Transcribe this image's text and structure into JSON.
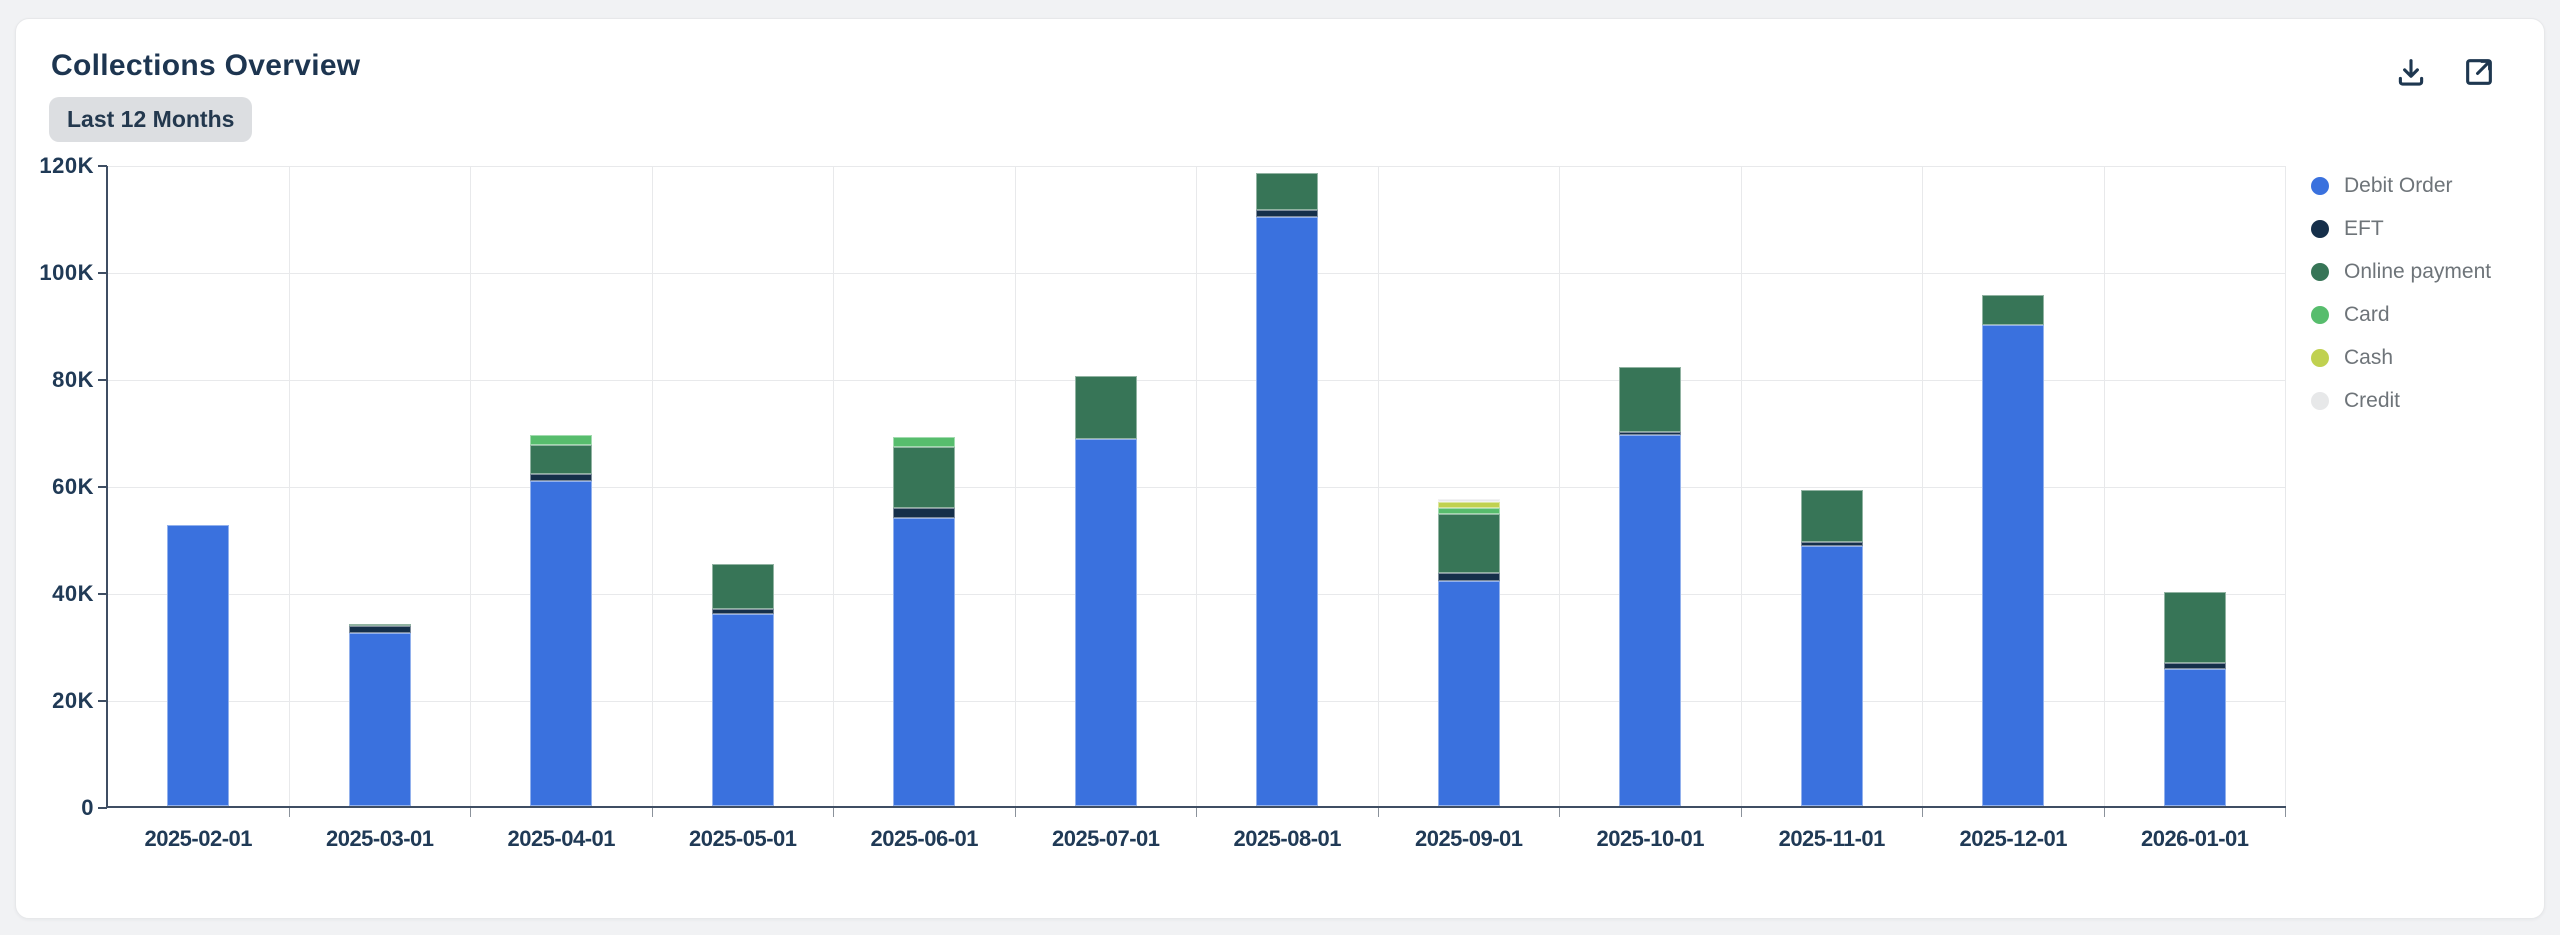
{
  "page": {
    "background": "#f1f2f4",
    "card_background": "#ffffff"
  },
  "header": {
    "title": "Collections Overview",
    "badge": "Last 12 Months",
    "icons": [
      {
        "name": "download-icon"
      },
      {
        "name": "open-external-icon"
      }
    ]
  },
  "colors": {
    "title_text": "#1d3550",
    "axis_label_text": "#203a56",
    "legend_text": "#6e7479",
    "axis_line": "#3f4e63",
    "gridline": "#e8e9eb",
    "badge_bg": "#dcdee1"
  },
  "chart_data": {
    "type": "bar",
    "stacked": true,
    "title": "Collections Overview",
    "xlabel": "",
    "ylabel": "",
    "unit": "thousands (K)",
    "grid": true,
    "legend_position": "right",
    "ylim_k": [
      0,
      120
    ],
    "yticks": [
      "0",
      "20K",
      "40K",
      "60K",
      "80K",
      "100K",
      "120K"
    ],
    "x": [
      "2025-02-01",
      "2025-03-01",
      "2025-04-01",
      "2025-05-01",
      "2025-06-01",
      "2025-07-01",
      "2025-08-01",
      "2025-09-01",
      "2025-10-01",
      "2025-11-01",
      "2025-12-01",
      "2026-01-01"
    ],
    "series": [
      {
        "name": "Debit Order",
        "color": "#3a71de",
        "values_k": [
          52.5,
          32.3,
          60.8,
          35.9,
          53.8,
          68.6,
          110.1,
          42.1,
          69.4,
          48.6,
          89.9,
          25.6
        ]
      },
      {
        "name": "EFT",
        "color": "#152f4a",
        "values_k": [
          0,
          1.4,
          1.3,
          0.9,
          1.9,
          0,
          1.3,
          1.5,
          0.6,
          0.8,
          0,
          1.1
        ]
      },
      {
        "name": "Online payment",
        "color": "#377557",
        "values_k": [
          0,
          0.3,
          5.4,
          8.4,
          11.4,
          11.8,
          6.9,
          11.0,
          12.1,
          9.7,
          5.6,
          13.3
        ]
      },
      {
        "name": "Card",
        "color": "#57bd6d",
        "values_k": [
          0,
          0,
          1.9,
          0,
          1.9,
          0,
          0,
          1.2,
          0,
          0,
          0,
          0
        ]
      },
      {
        "name": "Cash",
        "color": "#c0d150",
        "values_k": [
          0,
          0,
          0,
          0,
          0,
          0,
          0,
          1.1,
          0,
          0,
          0,
          0
        ]
      },
      {
        "name": "Credit",
        "color": "#e7e8e9",
        "values_k": [
          0,
          0,
          0,
          0,
          0,
          0,
          0,
          0.5,
          0,
          0,
          0,
          0
        ]
      }
    ]
  }
}
